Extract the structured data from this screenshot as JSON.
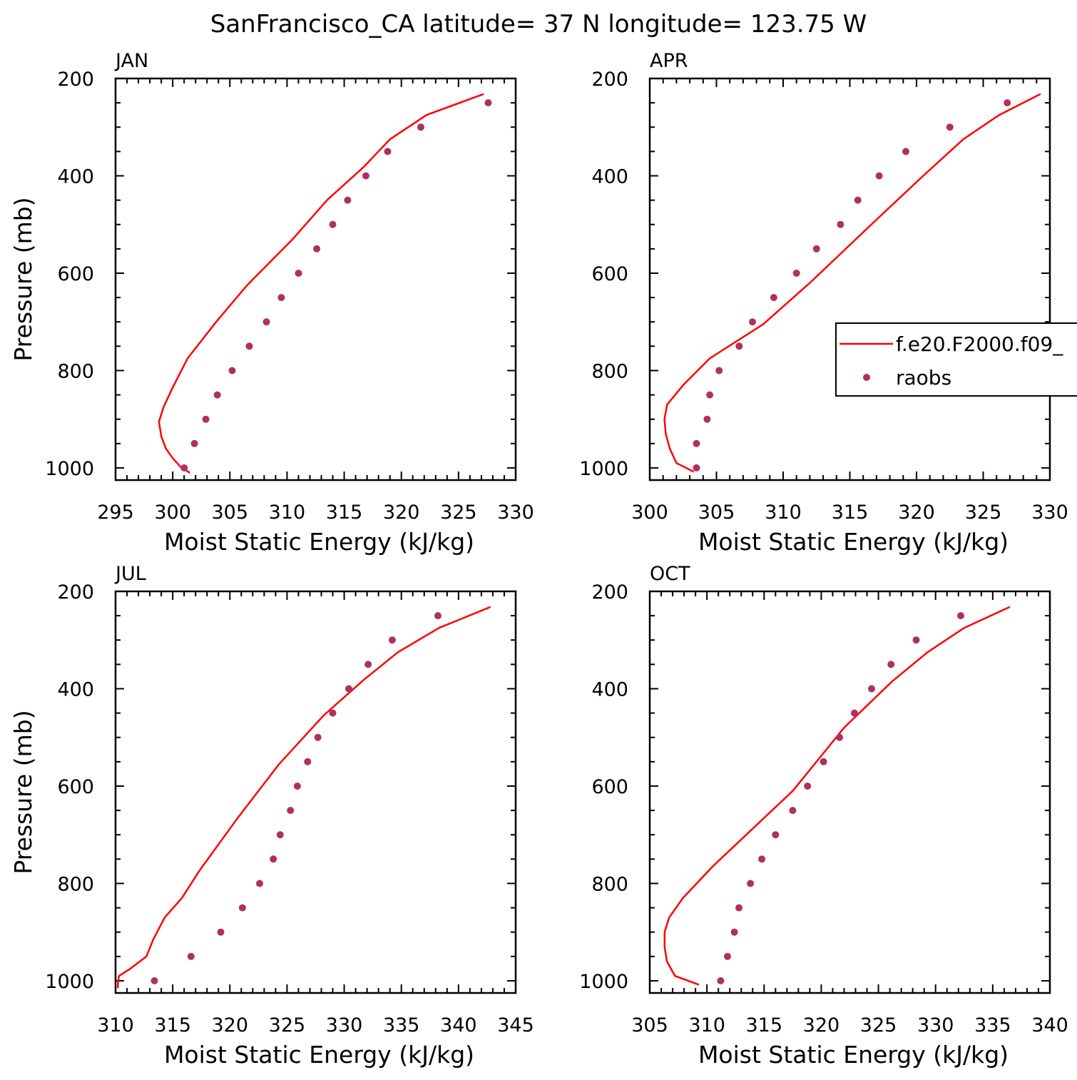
{
  "figure": {
    "title": "SanFrancisco_CA  latitude= 37 N longitude= 123.75 W"
  },
  "legend": {
    "model_label": "f.e20.F2000.f09_",
    "obs_label": "raobs"
  },
  "colors": {
    "model_line": "#ff0000",
    "obs_marker": "#b03060",
    "axis": "#000000"
  },
  "chart_data": [
    {
      "type": "line",
      "title": "JAN",
      "xlabel": "Moist Static Energy (kJ/kg)",
      "ylabel": "Pressure (mb)",
      "xlim": [
        295,
        330
      ],
      "ylim": [
        1025,
        200
      ],
      "xticks": [
        295,
        300,
        305,
        310,
        315,
        320,
        325,
        330
      ],
      "yticks": [
        200,
        400,
        600,
        800,
        1000
      ],
      "series": [
        {
          "name": "f.e20.F2000.f09_",
          "kind": "line",
          "x": [
            327.2,
            322.2,
            319.0,
            316.7,
            313.5,
            310.5,
            306.5,
            303.8,
            301.3,
            300.0,
            299.2,
            298.8,
            299.0,
            299.4,
            300.0,
            300.7,
            301.5
          ],
          "y": [
            232,
            275,
            325,
            382,
            450,
            530,
            625,
            700,
            775,
            835,
            875,
            905,
            935,
            960,
            980,
            998,
            1010
          ]
        },
        {
          "name": "raobs",
          "kind": "scatter",
          "x": [
            327.6,
            321.7,
            318.8,
            316.9,
            315.3,
            314.0,
            312.6,
            311.0,
            309.5,
            308.2,
            306.7,
            305.2,
            303.9,
            302.9,
            301.9,
            301.0
          ],
          "y": [
            250,
            300,
            350,
            400,
            450,
            500,
            550,
            600,
            650,
            700,
            750,
            800,
            850,
            900,
            950,
            1000
          ]
        }
      ]
    },
    {
      "type": "line",
      "title": "APR",
      "xlabel": "Moist Static Energy (kJ/kg)",
      "ylabel": "",
      "xlim": [
        300,
        330
      ],
      "ylim": [
        1025,
        200
      ],
      "xticks": [
        300,
        305,
        310,
        315,
        320,
        325,
        330
      ],
      "yticks": [
        200,
        400,
        600,
        800,
        1000
      ],
      "series": [
        {
          "name": "f.e20.F2000.f09_",
          "kind": "line",
          "x": [
            329.3,
            326.2,
            323.5,
            320.5,
            317.0,
            312.0,
            308.5,
            304.5,
            302.5,
            301.3,
            301.1,
            301.2,
            301.5,
            302.0,
            303.3
          ],
          "y": [
            232,
            275,
            325,
            400,
            490,
            620,
            705,
            775,
            830,
            870,
            900,
            930,
            960,
            990,
            1008
          ]
        },
        {
          "name": "raobs",
          "kind": "scatter",
          "x": [
            326.8,
            322.5,
            319.2,
            317.2,
            315.6,
            314.3,
            312.5,
            311.0,
            309.3,
            307.7,
            306.7,
            305.2,
            304.5,
            304.3,
            303.5,
            303.5
          ],
          "y": [
            250,
            300,
            350,
            400,
            450,
            500,
            550,
            600,
            650,
            700,
            750,
            800,
            850,
            900,
            950,
            1000
          ]
        }
      ]
    },
    {
      "type": "line",
      "title": "JUL",
      "xlabel": "Moist Static Energy (kJ/kg)",
      "ylabel": "Pressure (mb)",
      "xlim": [
        310,
        345
      ],
      "ylim": [
        1025,
        200
      ],
      "xticks": [
        310,
        315,
        320,
        325,
        330,
        335,
        340,
        345
      ],
      "yticks": [
        200,
        400,
        600,
        800,
        1000
      ],
      "series": [
        {
          "name": "f.e20.F2000.f09_",
          "kind": "line",
          "x": [
            342.8,
            338.3,
            334.7,
            331.7,
            328.2,
            324.3,
            320.7,
            317.3,
            315.8,
            314.3,
            313.3,
            312.7,
            311.3,
            310.3,
            310.2,
            310.2
          ],
          "y": [
            232,
            275,
            325,
            382,
            455,
            555,
            665,
            775,
            830,
            870,
            915,
            950,
            975,
            990,
            1005,
            1015
          ]
        },
        {
          "name": "raobs",
          "kind": "scatter",
          "x": [
            338.2,
            334.2,
            332.1,
            330.4,
            329.0,
            327.7,
            326.8,
            325.9,
            325.3,
            324.4,
            323.8,
            322.6,
            321.1,
            319.2,
            316.6,
            313.4
          ],
          "y": [
            250,
            300,
            350,
            400,
            450,
            500,
            550,
            600,
            650,
            700,
            750,
            800,
            850,
            900,
            950,
            1000
          ]
        }
      ]
    },
    {
      "type": "line",
      "title": "OCT",
      "xlabel": "Moist Static Energy (kJ/kg)",
      "ylabel": "",
      "xlim": [
        305,
        340
      ],
      "ylim": [
        1025,
        200
      ],
      "xticks": [
        305,
        310,
        315,
        320,
        325,
        330,
        335,
        340
      ],
      "yticks": [
        200,
        400,
        600,
        800,
        1000
      ],
      "series": [
        {
          "name": "f.e20.F2000.f09_",
          "kind": "line",
          "x": [
            336.5,
            332.5,
            329.3,
            326.2,
            322.0,
            317.5,
            310.5,
            307.9,
            306.7,
            306.3,
            306.3,
            306.5,
            307.2,
            309.3
          ],
          "y": [
            232,
            275,
            325,
            385,
            480,
            610,
            765,
            830,
            870,
            900,
            930,
            960,
            990,
            1008
          ]
        },
        {
          "name": "raobs",
          "kind": "scatter",
          "x": [
            332.2,
            328.3,
            326.1,
            324.4,
            322.9,
            321.6,
            320.2,
            318.8,
            317.5,
            316.0,
            314.8,
            313.8,
            312.8,
            312.4,
            311.8,
            311.2
          ],
          "y": [
            250,
            300,
            350,
            400,
            450,
            500,
            550,
            600,
            650,
            700,
            750,
            800,
            850,
            900,
            950,
            1000
          ]
        }
      ]
    }
  ]
}
